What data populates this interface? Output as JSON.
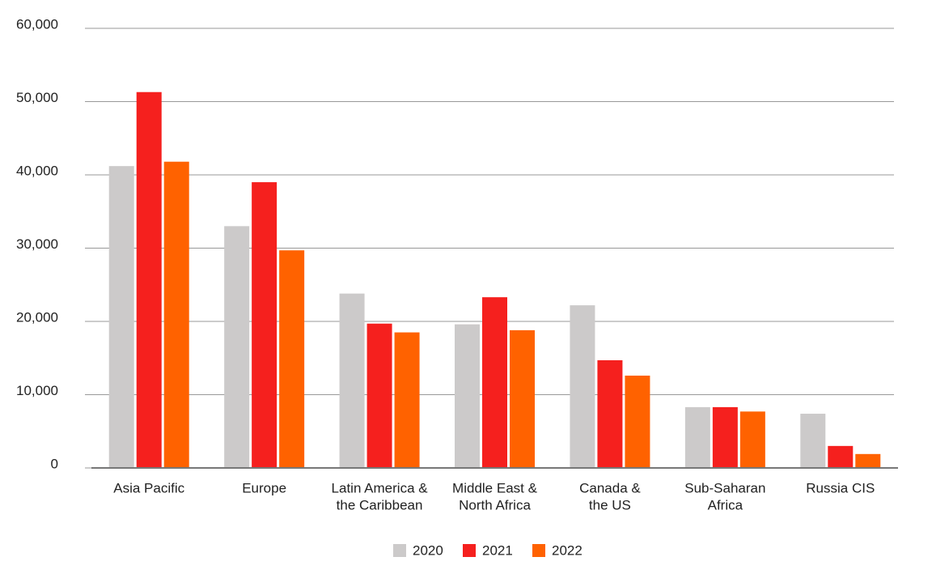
{
  "chart_data": {
    "type": "bar",
    "categories": [
      [
        "Asia Pacific"
      ],
      [
        "Europe"
      ],
      [
        "Latin America &",
        "the Caribbean"
      ],
      [
        "Middle East &",
        "North Africa"
      ],
      [
        "Canada &",
        "the US"
      ],
      [
        "Sub-Saharan",
        "Africa"
      ],
      [
        "Russia CIS"
      ]
    ],
    "series": [
      {
        "name": "2020",
        "color": "#cccaca",
        "values": [
          41200,
          33000,
          23800,
          19600,
          22200,
          8300,
          7400
        ]
      },
      {
        "name": "2021",
        "color": "#f5201e",
        "values": [
          51300,
          39000,
          19700,
          23300,
          14700,
          8300,
          3000
        ]
      },
      {
        "name": "2022",
        "color": "#ff6200",
        "values": [
          41800,
          29700,
          18500,
          18800,
          12600,
          7700,
          1900
        ]
      }
    ],
    "ylim": [
      0,
      60000
    ],
    "yticks": [
      0,
      {
        "value": 10000,
        "label": "10,000"
      },
      {
        "value": 20000,
        "label": "20,000"
      },
      {
        "value": 30000,
        "label": "30,000"
      },
      {
        "value": 40000,
        "label": "40,000"
      },
      {
        "value": 50000,
        "label": "50,000"
      },
      {
        "value": 60000,
        "label": "60,000"
      }
    ],
    "grid": true,
    "legend": "bottom"
  }
}
